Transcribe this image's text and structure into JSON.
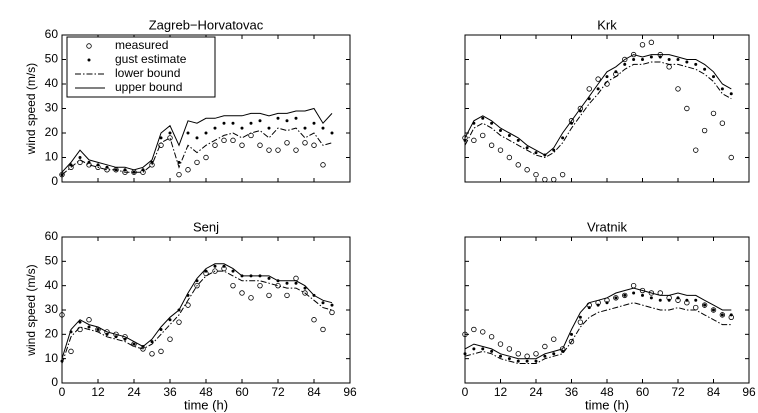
{
  "chart_data": [
    {
      "type": "line",
      "title": "Zagreb−Horvatovac",
      "ylabel": "wind speed (m/s)",
      "xlim": [
        0,
        96
      ],
      "xticks": [
        0,
        12,
        24,
        36,
        48,
        60,
        72,
        84,
        96
      ],
      "xtick_labels": false,
      "ylim": [
        0,
        60
      ],
      "yticks": [
        0,
        10,
        20,
        30,
        40,
        50,
        60
      ],
      "ytick_labels": true,
      "legend": "upper left",
      "x": [
        0,
        3,
        6,
        9,
        12,
        15,
        18,
        21,
        24,
        27,
        30,
        33,
        36,
        39,
        42,
        45,
        48,
        51,
        54,
        57,
        60,
        63,
        66,
        69,
        72,
        75,
        78,
        81,
        84,
        87,
        90
      ],
      "series": [
        {
          "name": "measured",
          "color": "#000000",
          "style": "circle",
          "values": [
            3,
            6,
            8,
            7,
            6,
            5,
            5,
            4,
            4,
            4,
            7,
            15,
            18,
            3,
            5,
            8,
            10,
            15,
            17,
            17,
            15,
            19,
            15,
            13,
            13,
            16,
            13,
            16,
            15,
            7,
            null
          ]
        },
        {
          "name": "gust estimate",
          "color": "#000000",
          "style": "dot",
          "values": [
            3,
            7,
            10,
            8,
            7,
            6,
            5,
            5,
            4,
            5,
            8,
            18,
            20,
            8,
            20,
            18,
            20,
            22,
            24,
            24,
            22,
            24,
            25,
            22,
            26,
            25,
            26,
            22,
            24,
            22,
            20
          ]
        },
        {
          "name": "lower bound",
          "color": "#000000",
          "style": "dashdot",
          "values": [
            3,
            6,
            9,
            7,
            6,
            5,
            5,
            4,
            4,
            4,
            7,
            16,
            18,
            6,
            15,
            12,
            15,
            17,
            19,
            20,
            18,
            20,
            21,
            18,
            22,
            21,
            22,
            18,
            20,
            15,
            16
          ]
        },
        {
          "name": "upper bound",
          "color": "#000000",
          "style": "solid",
          "values": [
            4,
            8,
            13,
            9,
            8,
            7,
            6,
            6,
            5,
            6,
            9,
            20,
            23,
            15,
            25,
            24,
            26,
            26,
            27,
            27,
            27,
            28,
            28,
            27,
            28,
            28,
            29,
            29,
            30,
            24,
            28
          ]
        }
      ]
    },
    {
      "type": "line",
      "title": "Krk",
      "xlim": [
        0,
        96
      ],
      "xticks": [
        0,
        12,
        24,
        36,
        48,
        60,
        72,
        84,
        96
      ],
      "xtick_labels": false,
      "ylim": [
        0,
        60
      ],
      "yticks": [
        0,
        10,
        20,
        30,
        40,
        50,
        60
      ],
      "ytick_labels": false,
      "x": [
        0,
        3,
        6,
        9,
        12,
        15,
        18,
        21,
        24,
        27,
        30,
        33,
        36,
        39,
        42,
        45,
        48,
        51,
        54,
        57,
        60,
        63,
        66,
        69,
        72,
        75,
        78,
        81,
        84,
        87,
        90
      ],
      "series": [
        {
          "color": "#000000",
          "style": "circle",
          "values": [
            18,
            17,
            19,
            15,
            13,
            10,
            7,
            5,
            3,
            1,
            1,
            3,
            25,
            30,
            38,
            42,
            40,
            44,
            50,
            52,
            56,
            57,
            52,
            47,
            38,
            30,
            13,
            21,
            28,
            24,
            10
          ]
        },
        {
          "color": "#000000",
          "style": "dot",
          "values": [
            17,
            24,
            26,
            24,
            21,
            19,
            17,
            14,
            12,
            11,
            13,
            18,
            24,
            29,
            34,
            38,
            43,
            45,
            48,
            50,
            50,
            51,
            51,
            50,
            50,
            49,
            48,
            46,
            43,
            38,
            36
          ]
        },
        {
          "color": "#000000",
          "style": "dashdot",
          "values": [
            15,
            22,
            24,
            22,
            19,
            17,
            15,
            13,
            11,
            10,
            12,
            16,
            22,
            27,
            32,
            36,
            41,
            43,
            46,
            48,
            48,
            49,
            49,
            48,
            48,
            47,
            46,
            44,
            41,
            36,
            34
          ]
        },
        {
          "color": "#000000",
          "style": "solid",
          "values": [
            18,
            25,
            27,
            25,
            22,
            20,
            18,
            15,
            13,
            11,
            14,
            20,
            25,
            30,
            35,
            40,
            45,
            47,
            50,
            52,
            51,
            52,
            52,
            52,
            51,
            50,
            50,
            48,
            45,
            40,
            38
          ]
        }
      ]
    },
    {
      "type": "line",
      "title": "Senj",
      "ylabel": "wind speed (m/s)",
      "xlabel": "time (h)",
      "xlim": [
        0,
        96
      ],
      "xticks": [
        0,
        12,
        24,
        36,
        48,
        60,
        72,
        84,
        96
      ],
      "xtick_labels": true,
      "ylim": [
        0,
        60
      ],
      "yticks": [
        0,
        10,
        20,
        30,
        40,
        50,
        60
      ],
      "ytick_labels": true,
      "x": [
        0,
        3,
        6,
        9,
        12,
        15,
        18,
        21,
        24,
        27,
        30,
        33,
        36,
        39,
        42,
        45,
        48,
        51,
        54,
        57,
        60,
        63,
        66,
        69,
        72,
        75,
        78,
        81,
        84,
        87,
        90
      ],
      "series": [
        {
          "color": "#000000",
          "style": "circle",
          "values": [
            28,
            13,
            22,
            26,
            22,
            21,
            20,
            19,
            16,
            14,
            12,
            13,
            18,
            25,
            32,
            40,
            45,
            46,
            47,
            40,
            37,
            35,
            40,
            36,
            40,
            36,
            43,
            37,
            26,
            22,
            29
          ]
        },
        {
          "color": "#000000",
          "style": "dot",
          "values": [
            9,
            21,
            25,
            23,
            22,
            20,
            19,
            18,
            16,
            15,
            17,
            22,
            26,
            30,
            36,
            42,
            46,
            48,
            48,
            46,
            44,
            44,
            44,
            43,
            42,
            41,
            41,
            39,
            36,
            33,
            32
          ]
        },
        {
          "color": "#000000",
          "style": "dashdot",
          "values": [
            8,
            19,
            23,
            22,
            21,
            19,
            18,
            17,
            15,
            14,
            16,
            20,
            24,
            28,
            34,
            40,
            44,
            46,
            46,
            44,
            42,
            42,
            42,
            41,
            40,
            39,
            39,
            37,
            34,
            31,
            30
          ]
        },
        {
          "color": "#000000",
          "style": "solid",
          "values": [
            10,
            22,
            26,
            24,
            23,
            21,
            20,
            19,
            17,
            15,
            18,
            23,
            27,
            30,
            37,
            43,
            47,
            49,
            49,
            47,
            44,
            44,
            44,
            44,
            42,
            42,
            42,
            40,
            36,
            34,
            33
          ]
        }
      ]
    },
    {
      "type": "line",
      "title": "Vratnik",
      "xlabel": "time (h)",
      "xlim": [
        0,
        96
      ],
      "xticks": [
        0,
        12,
        24,
        36,
        48,
        60,
        72,
        84,
        96
      ],
      "xtick_labels": true,
      "ylim": [
        0,
        60
      ],
      "yticks": [
        0,
        10,
        20,
        30,
        40,
        50,
        60
      ],
      "ytick_labels": false,
      "x": [
        0,
        3,
        6,
        9,
        12,
        15,
        18,
        21,
        24,
        27,
        30,
        33,
        36,
        39,
        42,
        45,
        48,
        51,
        54,
        57,
        60,
        63,
        66,
        69,
        72,
        75,
        78,
        81,
        84,
        87,
        90
      ],
      "series": [
        {
          "color": "#000000",
          "style": "circle",
          "values": [
            20,
            22,
            21,
            19,
            16,
            14,
            12,
            11,
            12,
            15,
            18,
            14,
            17,
            25,
            32,
            33,
            34,
            35,
            36,
            40,
            38,
            37,
            37,
            35,
            34,
            33,
            31,
            32,
            30,
            28,
            27
          ]
        },
        {
          "color": "#000000",
          "style": "dot",
          "values": [
            12,
            14,
            14,
            13,
            11,
            10,
            9,
            9,
            9,
            11,
            12,
            13,
            20,
            27,
            31,
            32,
            33,
            35,
            36,
            37,
            36,
            35,
            34,
            34,
            35,
            34,
            34,
            32,
            30,
            28,
            28
          ]
        },
        {
          "color": "#000000",
          "style": "dashdot",
          "values": [
            11,
            12,
            13,
            12,
            10,
            9,
            8,
            8,
            8,
            10,
            11,
            12,
            17,
            23,
            27,
            29,
            30,
            31,
            32,
            33,
            32,
            31,
            30,
            30,
            31,
            30,
            30,
            28,
            26,
            24,
            24
          ]
        },
        {
          "color": "#000000",
          "style": "solid",
          "values": [
            14,
            16,
            15,
            14,
            12,
            11,
            10,
            10,
            10,
            12,
            13,
            14,
            22,
            29,
            33,
            34,
            35,
            37,
            38,
            39,
            38,
            37,
            36,
            36,
            37,
            36,
            36,
            34,
            32,
            30,
            30
          ]
        }
      ]
    }
  ]
}
